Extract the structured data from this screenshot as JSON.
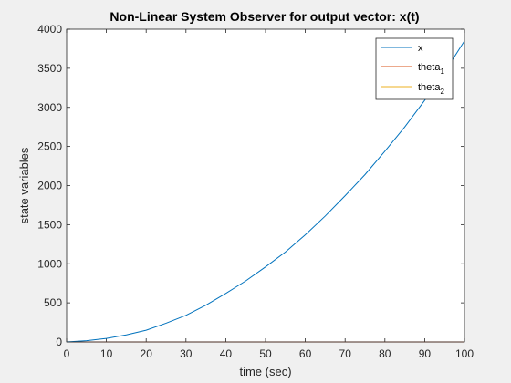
{
  "chart_data": {
    "type": "line",
    "title": "Non-Linear System Observer for output vector: x(t)",
    "xlabel": "time (sec)",
    "ylabel": "state variables",
    "xlim": [
      0,
      100
    ],
    "ylim": [
      0,
      4000
    ],
    "xticks": [
      0,
      10,
      20,
      30,
      40,
      50,
      60,
      70,
      80,
      90,
      100
    ],
    "yticks": [
      0,
      500,
      1000,
      1500,
      2000,
      2500,
      3000,
      3500,
      4000
    ],
    "grid": false,
    "legend_position": "top-right",
    "x": [
      0,
      5,
      10,
      15,
      20,
      25,
      30,
      35,
      40,
      45,
      50,
      55,
      60,
      65,
      70,
      75,
      80,
      85,
      90,
      95,
      100
    ],
    "series": [
      {
        "name": "x",
        "color": "#0072BD",
        "values": [
          0,
          16,
          45,
          90,
          150,
          240,
          340,
          470,
          620,
          780,
          960,
          1150,
          1370,
          1610,
          1870,
          2140,
          2440,
          2750,
          3090,
          3450,
          3850
        ]
      },
      {
        "name": "theta",
        "subscript": "1",
        "color": "#D95319",
        "values": [
          0,
          0,
          0,
          0,
          0,
          0,
          0,
          0,
          0,
          0,
          0,
          0,
          0,
          0,
          0,
          0,
          0,
          0,
          0,
          0,
          0
        ]
      },
      {
        "name": "theta",
        "subscript": "2",
        "color": "#EDB120",
        "values": [
          0,
          0,
          0,
          0,
          0,
          0,
          0,
          0,
          0,
          0,
          0,
          0,
          0,
          0,
          0,
          0,
          0,
          0,
          0,
          0,
          0
        ]
      }
    ]
  }
}
